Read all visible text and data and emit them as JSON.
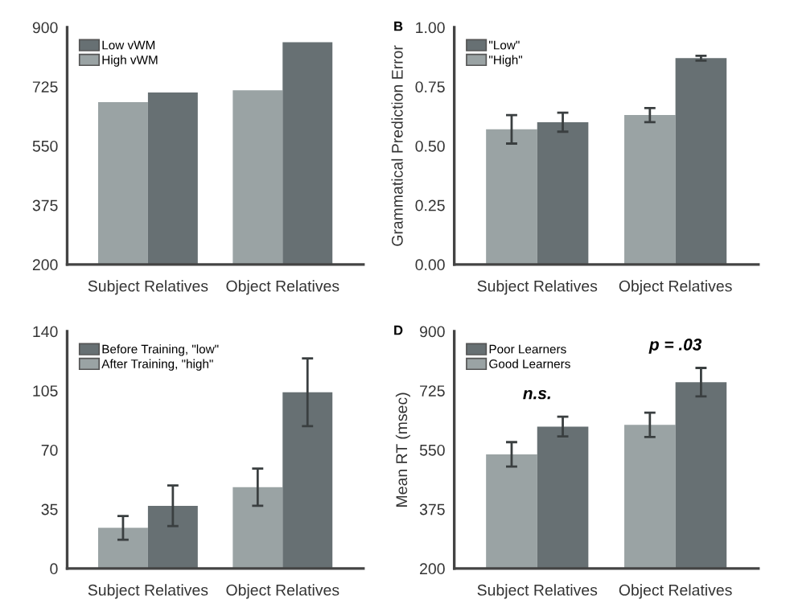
{
  "chart_data": [
    {
      "type": "bar",
      "categories": [
        "Subject Relatives",
        "Object Relatives"
      ],
      "series": [
        {
          "name": "High vWM",
          "color": "#9aa3a4",
          "values": [
            679,
            714
          ]
        },
        {
          "name": "Low vWM",
          "color": "#677073",
          "values": [
            708,
            856
          ]
        }
      ],
      "ylim": [
        200,
        900
      ],
      "yticks": [
        200,
        375,
        550,
        725,
        900
      ],
      "legend": "top left",
      "grid": false
    },
    {
      "type": "bar",
      "title": "B",
      "ylabel": "Grammatical Prediction Error",
      "categories": [
        "Subject Relatives",
        "Object Relatives"
      ],
      "series": [
        {
          "name": "\"High\"",
          "color": "#9aa3a4",
          "values": [
            0.57,
            0.63
          ],
          "errors": [
            0.06,
            0.03
          ]
        },
        {
          "name": "\"Low\"",
          "color": "#677073",
          "values": [
            0.6,
            0.87
          ],
          "errors": [
            0.04,
            0.01
          ]
        }
      ],
      "ylim": [
        0,
        1
      ],
      "yticks": [
        {
          "value": 0,
          "label": "0.00"
        },
        {
          "value": 0.25,
          "label": "0.25"
        },
        {
          "value": 0.5,
          "label": "0.50"
        },
        {
          "value": 0.75,
          "label": "0.75"
        },
        {
          "value": 1,
          "label": "1.00"
        }
      ],
      "legend": "top left",
      "grid": false
    },
    {
      "type": "bar",
      "categories": [
        "Subject Relatives",
        "Object Relatives"
      ],
      "series": [
        {
          "name": "After Training, \"high\"",
          "color": "#9aa3a4",
          "values": [
            24,
            48
          ],
          "errors": [
            7,
            11
          ]
        },
        {
          "name": "Before Training, \"low\"",
          "color": "#677073",
          "values": [
            37,
            104
          ],
          "errors": [
            12,
            20
          ]
        }
      ],
      "ylim": [
        0,
        140
      ],
      "yticks": [
        0,
        35,
        70,
        105,
        140
      ],
      "legend": "top left",
      "grid": false
    },
    {
      "type": "bar",
      "title": "D",
      "ylabel": "Mean RT (msec)",
      "categories": [
        "Subject Relatives",
        "Object Relatives"
      ],
      "series": [
        {
          "name": "Good Learners",
          "color": "#9aa3a4",
          "values": [
            537,
            624
          ],
          "errors": [
            36,
            36
          ]
        },
        {
          "name": "Poor Learners",
          "color": "#677073",
          "values": [
            619,
            750
          ],
          "errors": [
            29,
            42
          ]
        }
      ],
      "ylim": [
        200,
        900
      ],
      "yticks": [
        200,
        375,
        550,
        725,
        900
      ],
      "legend": "top left",
      "grid": false,
      "annotations": [
        "n.s.",
        "p = .03"
      ]
    }
  ]
}
